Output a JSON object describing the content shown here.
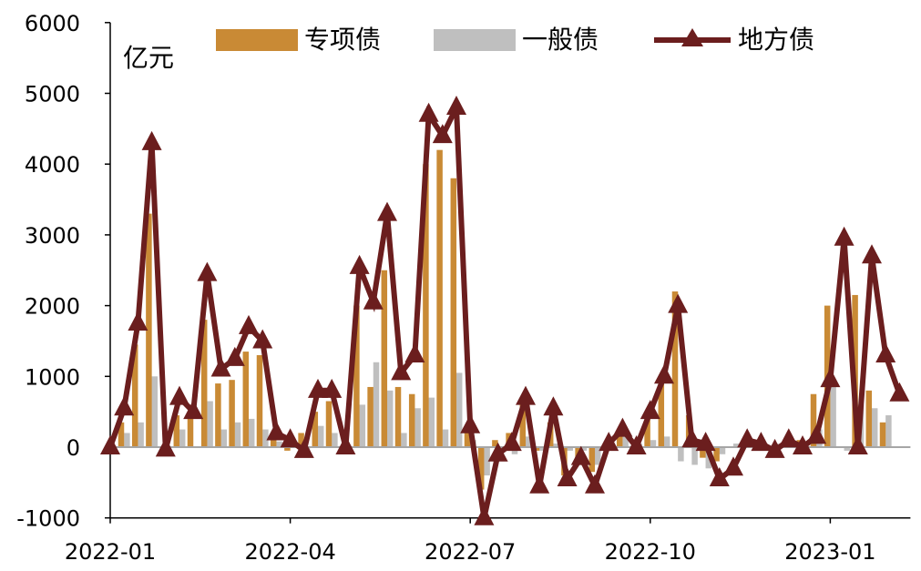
{
  "chart_data": {
    "type": "bar+line",
    "unit_label": "亿元",
    "ylim": [
      -1000,
      6000
    ],
    "yticks": [
      -1000,
      0,
      1000,
      2000,
      3000,
      4000,
      5000,
      6000
    ],
    "xtick_labels": [
      "2022-01",
      "2022-04",
      "2022-07",
      "2022-10",
      "2023-01"
    ],
    "xtick_positions": [
      0,
      13,
      26,
      39,
      52
    ],
    "legend": [
      {
        "name": "专项债",
        "kind": "bar",
        "color": "#C98A35"
      },
      {
        "name": "一般债",
        "kind": "bar",
        "color": "#BFBFBF"
      },
      {
        "name": "地方债",
        "kind": "line",
        "color": "#6B1E1E"
      }
    ],
    "x_index": [
      0,
      1,
      2,
      3,
      4,
      5,
      6,
      7,
      8,
      9,
      10,
      11,
      12,
      13,
      14,
      15,
      16,
      17,
      18,
      19,
      20,
      21,
      22,
      23,
      24,
      25,
      26,
      27,
      28,
      29,
      30,
      31,
      32,
      33,
      34,
      35,
      36,
      37,
      38,
      39,
      40,
      41,
      42,
      43,
      44,
      45,
      46,
      47,
      48,
      49,
      50,
      51,
      52,
      53,
      54,
      55,
      56,
      57
    ],
    "special": [
      0,
      350,
      1450,
      3300,
      0,
      450,
      500,
      1800,
      900,
      950,
      1350,
      1300,
      150,
      -50,
      200,
      500,
      650,
      0,
      2000,
      850,
      2500,
      850,
      750,
      4000,
      4200,
      3800,
      250,
      -600,
      100,
      200,
      600,
      -50,
      350,
      -400,
      -150,
      -350,
      0,
      150,
      -50,
      400,
      900,
      2200,
      450,
      -150,
      -200,
      0,
      0,
      -50,
      0,
      0,
      100,
      750,
      2000,
      0,
      2150,
      800,
      350,
      0
    ],
    "general": [
      0,
      200,
      350,
      1000,
      0,
      250,
      0,
      650,
      250,
      350,
      400,
      250,
      80,
      20,
      -150,
      300,
      200,
      0,
      600,
      1200,
      800,
      200,
      550,
      700,
      250,
      1050,
      100,
      -400,
      -150,
      -100,
      150,
      -50,
      50,
      -50,
      -50,
      -250,
      50,
      150,
      50,
      100,
      150,
      -200,
      -250,
      -300,
      -100,
      50,
      50,
      -50,
      50,
      50,
      50,
      250,
      950,
      -50,
      600,
      550,
      450,
      0
    ],
    "local": [
      0,
      550,
      1750,
      4300,
      -30,
      700,
      500,
      2450,
      1100,
      1250,
      1700,
      1500,
      200,
      100,
      -50,
      800,
      800,
      0,
      2550,
      2050,
      3300,
      1050,
      1300,
      4700,
      4400,
      4800,
      300,
      -1000,
      -100,
      50,
      700,
      -550,
      550,
      -450,
      -150,
      -550,
      50,
      250,
      0,
      500,
      1000,
      2000,
      100,
      50,
      -450,
      -300,
      100,
      50,
      -50,
      100,
      0,
      150,
      950,
      2950,
      0,
      2700,
      1300,
      750
    ]
  }
}
